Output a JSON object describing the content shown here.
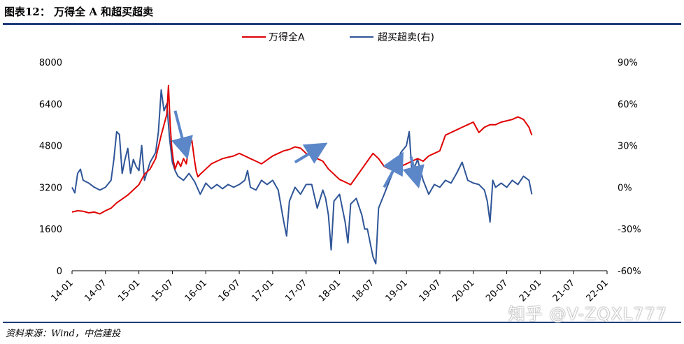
{
  "header": {
    "title": "图表12： 万得全 A 和超买超卖"
  },
  "footer": {
    "source": "资料来源：Wind，中信建投",
    "watermark": "知乎 @V-ZQXL777"
  },
  "chart_data": {
    "type": "line",
    "title": "图表12： 万得全 A 和超买超卖",
    "legend": {
      "placement": "top-center",
      "entries": [
        "万得全A",
        "超买超卖(右)"
      ]
    },
    "x_ticks": [
      "14-01",
      "14-07",
      "15-01",
      "15-07",
      "16-01",
      "16-07",
      "17-01",
      "17-07",
      "18-01",
      "18-07",
      "19-01",
      "19-07",
      "20-01",
      "20-07",
      "21-01",
      "21-07",
      "22-01"
    ],
    "y_left": {
      "min": 0,
      "max": 8000,
      "ticks": [
        "0",
        "1600",
        "3200",
        "4800",
        "6400",
        "8000"
      ]
    },
    "y_right": {
      "min": -60,
      "max": 90,
      "ticks": [
        "-60%",
        "-30%",
        "0%",
        "30%",
        "60%",
        "90%"
      ]
    },
    "grid": false,
    "colors": {
      "wind_a": "#e00000",
      "overbought": "#2f5597",
      "arrow": "#5b87c9"
    },
    "series": [
      {
        "name": "万得全A",
        "axis": "left",
        "color": "#e00000",
        "points": [
          [
            0,
            2250
          ],
          [
            1,
            2300
          ],
          [
            2,
            2280
          ],
          [
            3,
            2220
          ],
          [
            4,
            2250
          ],
          [
            5,
            2180
          ],
          [
            6,
            2300
          ],
          [
            7,
            2400
          ],
          [
            8,
            2600
          ],
          [
            9,
            2750
          ],
          [
            10,
            2900
          ],
          [
            11,
            3100
          ],
          [
            12,
            3300
          ],
          [
            13,
            3700
          ],
          [
            14,
            3900
          ],
          [
            15,
            4300
          ],
          [
            16,
            5200
          ],
          [
            17,
            6000
          ],
          [
            17.3,
            7100
          ],
          [
            17.6,
            5600
          ],
          [
            17.9,
            4700
          ],
          [
            18.2,
            4200
          ],
          [
            18.5,
            3900
          ],
          [
            19,
            4200
          ],
          [
            19.5,
            4000
          ],
          [
            20,
            4300
          ],
          [
            20.5,
            4100
          ],
          [
            21,
            4800
          ],
          [
            21.5,
            5000
          ],
          [
            22,
            4200
          ],
          [
            22.3,
            3800
          ],
          [
            22.6,
            3600
          ],
          [
            23,
            3700
          ],
          [
            24,
            3900
          ],
          [
            25,
            4100
          ],
          [
            26,
            4200
          ],
          [
            27,
            4300
          ],
          [
            28,
            4350
          ],
          [
            29,
            4400
          ],
          [
            30,
            4500
          ],
          [
            31,
            4400
          ],
          [
            32,
            4300
          ],
          [
            33,
            4200
          ],
          [
            34,
            4100
          ],
          [
            35,
            4250
          ],
          [
            36,
            4400
          ],
          [
            37,
            4500
          ],
          [
            38,
            4600
          ],
          [
            39,
            4650
          ],
          [
            40,
            4750
          ],
          [
            41,
            4700
          ],
          [
            42,
            4500
          ],
          [
            43,
            4400
          ],
          [
            44,
            4300
          ],
          [
            45,
            4200
          ],
          [
            46,
            3900
          ],
          [
            47,
            3700
          ],
          [
            48,
            3500
          ],
          [
            49,
            3400
          ],
          [
            50,
            3300
          ],
          [
            51,
            3600
          ],
          [
            52,
            3900
          ],
          [
            53,
            4200
          ],
          [
            54,
            4500
          ],
          [
            55,
            4300
          ],
          [
            56,
            4000
          ],
          [
            57,
            3900
          ],
          [
            58,
            4100
          ],
          [
            59,
            4000
          ],
          [
            60,
            4100
          ],
          [
            61,
            4200
          ],
          [
            62,
            4300
          ],
          [
            63,
            4200
          ],
          [
            64,
            4400
          ],
          [
            65,
            4500
          ],
          [
            66,
            4600
          ],
          [
            67,
            5200
          ],
          [
            68,
            5300
          ],
          [
            69,
            5400
          ],
          [
            70,
            5500
          ],
          [
            71,
            5600
          ],
          [
            72,
            5700
          ],
          [
            73,
            5300
          ],
          [
            74,
            5500
          ],
          [
            75,
            5600
          ],
          [
            76,
            5600
          ],
          [
            77,
            5700
          ],
          [
            78,
            5750
          ],
          [
            79,
            5800
          ],
          [
            80,
            5900
          ],
          [
            81,
            5800
          ],
          [
            82,
            5500
          ],
          [
            82.5,
            5200
          ]
        ]
      },
      {
        "name": "超买超卖(右)",
        "axis": "right",
        "color": "#2f5597",
        "points": [
          [
            0,
            0
          ],
          [
            0.5,
            -4
          ],
          [
            1,
            10
          ],
          [
            1.5,
            13
          ],
          [
            2,
            5
          ],
          [
            3,
            3
          ],
          [
            4,
            0
          ],
          [
            5,
            -2
          ],
          [
            6,
            0
          ],
          [
            7,
            5
          ],
          [
            7.5,
            20
          ],
          [
            8,
            40
          ],
          [
            8.5,
            38
          ],
          [
            9,
            10
          ],
          [
            9.5,
            20
          ],
          [
            10,
            28
          ],
          [
            10.5,
            10
          ],
          [
            11,
            20
          ],
          [
            11.5,
            15
          ],
          [
            12,
            12
          ],
          [
            12.5,
            30
          ],
          [
            13,
            5
          ],
          [
            14,
            18
          ],
          [
            15,
            25
          ],
          [
            15.5,
            40
          ],
          [
            16,
            70
          ],
          [
            16.5,
            55
          ],
          [
            17,
            60
          ],
          [
            17.5,
            35
          ],
          [
            18,
            18
          ],
          [
            18.5,
            12
          ],
          [
            19,
            8
          ],
          [
            20,
            5
          ],
          [
            21,
            10
          ],
          [
            22,
            4
          ],
          [
            23,
            -5
          ],
          [
            24,
            3
          ],
          [
            25,
            -1
          ],
          [
            26,
            2
          ],
          [
            27,
            -1
          ],
          [
            28,
            2
          ],
          [
            29,
            0
          ],
          [
            30,
            2
          ],
          [
            31,
            5
          ],
          [
            31.5,
            12
          ],
          [
            32,
            0
          ],
          [
            33,
            -2
          ],
          [
            34,
            5
          ],
          [
            35,
            2
          ],
          [
            36,
            5
          ],
          [
            37,
            -2
          ],
          [
            38,
            -25
          ],
          [
            38.5,
            -35
          ],
          [
            39,
            -10
          ],
          [
            40,
            0
          ],
          [
            41,
            -5
          ],
          [
            42,
            2
          ],
          [
            43,
            2
          ],
          [
            44,
            -15
          ],
          [
            45,
            -2
          ],
          [
            45.5,
            -8
          ],
          [
            46,
            -20
          ],
          [
            46.5,
            -45
          ],
          [
            47,
            -10
          ],
          [
            48,
            -5
          ],
          [
            48.5,
            -15
          ],
          [
            49,
            -25
          ],
          [
            49.5,
            -40
          ],
          [
            50,
            -12
          ],
          [
            51,
            -8
          ],
          [
            52,
            -20
          ],
          [
            52.5,
            -30
          ],
          [
            53,
            -30
          ],
          [
            54,
            -50
          ],
          [
            54.5,
            -55
          ],
          [
            55,
            -15
          ],
          [
            56,
            -5
          ],
          [
            57,
            5
          ],
          [
            58,
            15
          ],
          [
            59,
            25
          ],
          [
            60,
            30
          ],
          [
            60.5,
            40
          ],
          [
            61,
            10
          ],
          [
            62,
            20
          ],
          [
            63,
            5
          ],
          [
            64,
            -5
          ],
          [
            65,
            2
          ],
          [
            66,
            0
          ],
          [
            67,
            5
          ],
          [
            68,
            3
          ],
          [
            69,
            10
          ],
          [
            70,
            18
          ],
          [
            71,
            5
          ],
          [
            72,
            3
          ],
          [
            73,
            2
          ],
          [
            74,
            -2
          ],
          [
            74.5,
            -10
          ],
          [
            75,
            -25
          ],
          [
            75.5,
            5
          ],
          [
            76,
            0
          ],
          [
            77,
            3
          ],
          [
            78,
            0
          ],
          [
            79,
            5
          ],
          [
            80,
            2
          ],
          [
            81,
            8
          ],
          [
            82,
            5
          ],
          [
            82.5,
            -5
          ]
        ]
      }
    ],
    "annotations": [
      {
        "type": "arrow",
        "from": [
          18.5,
          55
        ],
        "to": [
          20.5,
          24
        ]
      },
      {
        "type": "arrow",
        "from": [
          40,
          18
        ],
        "to": [
          45,
          30
        ]
      },
      {
        "type": "arrow",
        "from": [
          56,
          0
        ],
        "to": [
          59,
          22
        ]
      },
      {
        "type": "arrow",
        "from": [
          60.8,
          22
        ],
        "to": [
          62,
          3
        ]
      }
    ]
  }
}
